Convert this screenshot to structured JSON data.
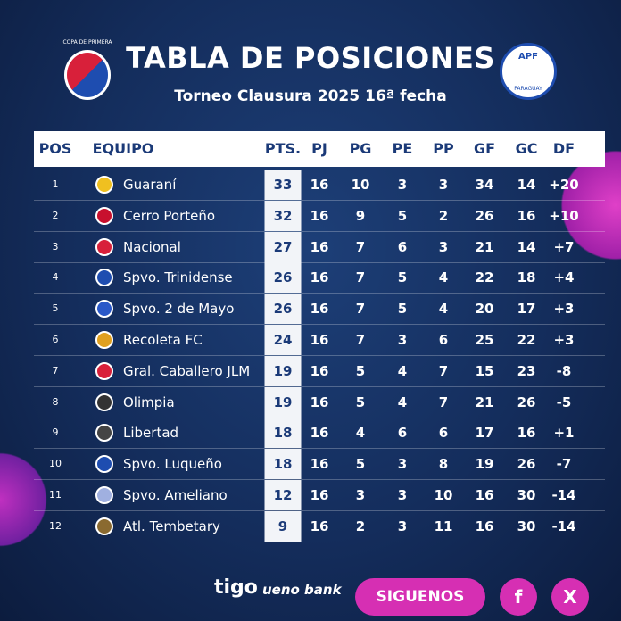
{
  "header": {
    "title": "TABLA DE POSICIONES",
    "subtitle": "Torneo Clausura 2025 16ª fecha",
    "left_logo": "COPA DE PRIMERA",
    "right_logo": "APF",
    "right_logo_sub": "PARAGUAY"
  },
  "table": {
    "columns": [
      "POS",
      "EQUIPO",
      "PTS.",
      "PJ",
      "PG",
      "PE",
      "PP",
      "GF",
      "GC",
      "DF"
    ],
    "rows": [
      [
        1,
        "Guaraní",
        33,
        16,
        10,
        3,
        3,
        34,
        14,
        "+20"
      ],
      [
        2,
        "Cerro Porteño",
        32,
        16,
        9,
        5,
        2,
        26,
        16,
        "+10"
      ],
      [
        3,
        "Nacional",
        27,
        16,
        7,
        6,
        3,
        21,
        14,
        "+7"
      ],
      [
        4,
        "Spvo. Trinidense",
        26,
        16,
        7,
        5,
        4,
        22,
        18,
        "+4"
      ],
      [
        5,
        "Spvo. 2 de Mayo",
        26,
        16,
        7,
        5,
        4,
        20,
        17,
        "+3"
      ],
      [
        6,
        "Recoleta FC",
        24,
        16,
        7,
        3,
        6,
        25,
        22,
        "+3"
      ],
      [
        7,
        "Gral. Caballero JLM",
        19,
        16,
        5,
        4,
        7,
        15,
        23,
        "-8"
      ],
      [
        8,
        "Olimpia",
        19,
        16,
        5,
        4,
        7,
        21,
        26,
        "-5"
      ],
      [
        9,
        "Libertad",
        18,
        16,
        4,
        6,
        6,
        17,
        16,
        "+1"
      ],
      [
        10,
        "Spvo. Luqueño",
        18,
        16,
        5,
        3,
        8,
        19,
        26,
        "-7"
      ],
      [
        11,
        "Spvo. Ameliano",
        12,
        16,
        3,
        3,
        10,
        16,
        30,
        "-14"
      ],
      [
        12,
        "Atl. Tembetary",
        9,
        16,
        2,
        3,
        11,
        16,
        30,
        "-14"
      ]
    ]
  },
  "footer": {
    "sponsors": [
      "tigo",
      "ueno bank"
    ],
    "button": "SIGUENOS",
    "icons": [
      "f",
      "X"
    ]
  }
}
